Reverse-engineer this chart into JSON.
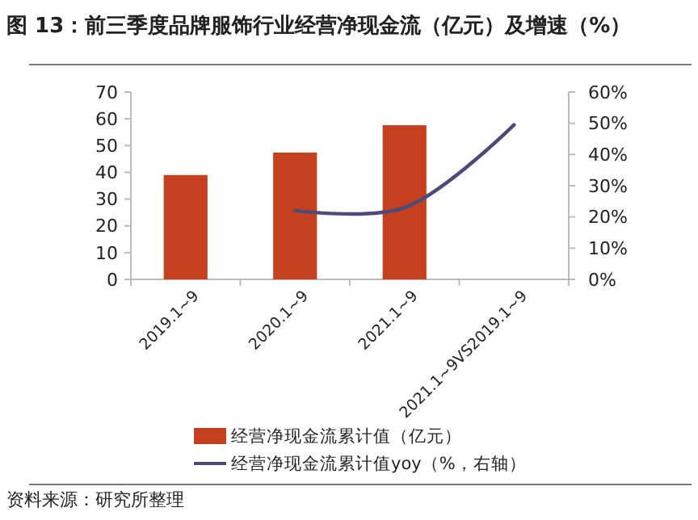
{
  "chart_data": {
    "type": "bar",
    "title": "图 13：前三季度品牌服饰行业经营净现金流（亿元）及增速（%）",
    "categories": [
      "2019.1~9",
      "2020.1~9",
      "2021.1~9",
      "2021.1~9VS2019.1~9"
    ],
    "series": [
      {
        "name": "经营净现金流累计值（亿元）",
        "color": "#c5401f",
        "values": [
          39,
          47.4,
          57.6,
          null
        ]
      },
      {
        "name": "经营净现金流累计值yoy（%，右轴）",
        "type": "line",
        "axis": "y2",
        "color": "#4b4a7a",
        "values": [
          null,
          22,
          23,
          49.5
        ]
      }
    ],
    "ylim": [
      0,
      70
    ],
    "yticks": [
      0,
      10,
      20,
      30,
      40,
      50,
      60,
      70
    ],
    "y2lim": [
      0,
      60
    ],
    "y2ticks": [
      {
        "value": 0,
        "label": "0%"
      },
      {
        "value": 10,
        "label": "10%"
      },
      {
        "value": 20,
        "label": "20%"
      },
      {
        "value": 30,
        "label": "30%"
      },
      {
        "value": 40,
        "label": "40%"
      },
      {
        "value": 50,
        "label": "50%"
      },
      {
        "value": 60,
        "label": "60%"
      }
    ],
    "legend": "bottom",
    "grid": false,
    "annotations": [
      "资料来源：研究所整理"
    ]
  }
}
